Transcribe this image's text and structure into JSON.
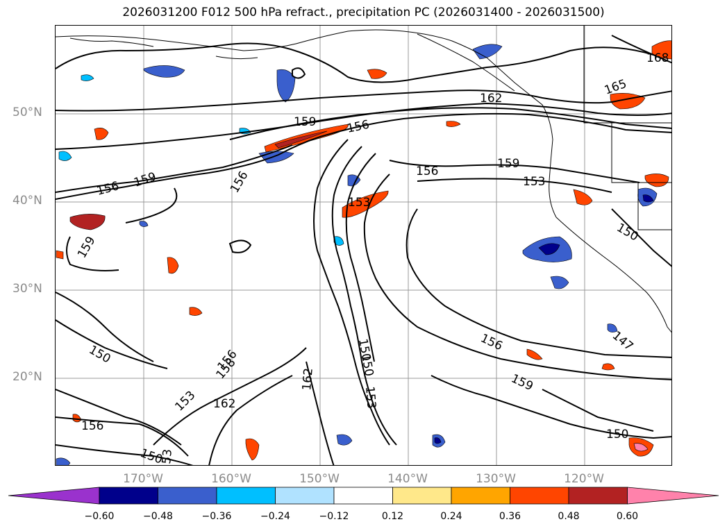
{
  "title": "2026031200 F012 500 hPa refract., precipitation PC (2026031400 - 2026031500)",
  "map": {
    "latitude_labels": [
      "50°N",
      "40°N",
      "30°N",
      "20°N"
    ],
    "longitude_labels": [
      "170°W",
      "160°W",
      "150°W",
      "140°W",
      "130°W",
      "120°W"
    ],
    "contour_labels": [
      "168",
      "165",
      "162",
      "159",
      "156",
      "159",
      "156",
      "159",
      "156",
      "159",
      "153",
      "156",
      "153",
      "150",
      "159",
      "150",
      "156",
      "150",
      "158",
      "156",
      "162",
      "153",
      "162",
      "156",
      "150",
      "53",
      "150",
      "147",
      "150",
      "153"
    ]
  },
  "colorbar": {
    "tick_labels": [
      "−0.60",
      "−0.48",
      "−0.36",
      "−0.24",
      "−0.12",
      "0.12",
      "0.24",
      "0.36",
      "0.48",
      "0.60"
    ],
    "colors": [
      "#9a32cd",
      "#00008b",
      "#3a5fcd",
      "#00bfff",
      "#b0e2ff",
      "#ffffff",
      "#ffe88a",
      "#ffa500",
      "#ff4500",
      "#b22222",
      "#ff82ab"
    ]
  }
}
